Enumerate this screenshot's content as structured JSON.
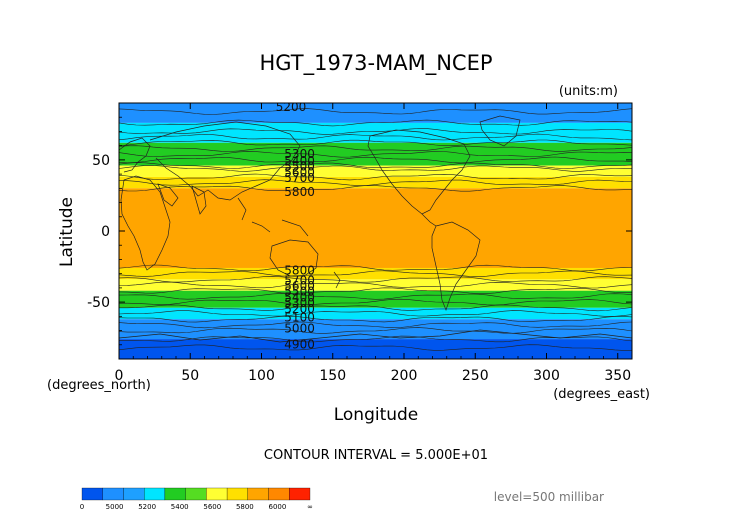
{
  "chart_data": {
    "type": "heatmap",
    "title": "HGT_1973-MAM_NCEP",
    "units_label": "(units:m)",
    "xlabel": "Longitude",
    "ylabel": "Latitude",
    "x_unit_label": "(degrees_east)",
    "y_unit_label": "(degrees_north)",
    "xlim": [
      0,
      360
    ],
    "ylim": [
      -90,
      90
    ],
    "xticks": [
      0,
      50,
      100,
      150,
      200,
      250,
      300,
      350
    ],
    "yticks": [
      50,
      0,
      -50
    ],
    "contour_interval_label": "CONTOUR INTERVAL = 5.000E+01",
    "level_label": "level=500 millibar",
    "bands": [
      {
        "lat_top": 90,
        "lat_bottom": 76,
        "color": "#1e90ff"
      },
      {
        "lat_top": 76,
        "lat_bottom": 62,
        "color": "#00e5ff"
      },
      {
        "lat_top": 62,
        "lat_bottom": 46,
        "color": "#22cc22"
      },
      {
        "lat_top": 46,
        "lat_bottom": 38,
        "color": "#ffff33"
      },
      {
        "lat_top": 38,
        "lat_bottom": 30,
        "color": "#ffe000"
      },
      {
        "lat_top": 30,
        "lat_bottom": -26,
        "color": "#ffa500"
      },
      {
        "lat_top": -26,
        "lat_bottom": -34,
        "color": "#ffe000"
      },
      {
        "lat_top": -34,
        "lat_bottom": -42,
        "color": "#ffff33"
      },
      {
        "lat_top": -42,
        "lat_bottom": -54,
        "color": "#22cc22"
      },
      {
        "lat_top": -54,
        "lat_bottom": -62,
        "color": "#00e5ff"
      },
      {
        "lat_top": -62,
        "lat_bottom": -76,
        "color": "#1e90ff"
      },
      {
        "lat_top": -76,
        "lat_bottom": -90,
        "color": "#0055ee"
      }
    ],
    "contour_labels": [
      {
        "text": "5200",
        "lon": 110,
        "lat": 88
      },
      {
        "text": "5300",
        "lon": 116,
        "lat": 55
      },
      {
        "text": "5400",
        "lon": 116,
        "lat": 50
      },
      {
        "text": "5500",
        "lon": 116,
        "lat": 46
      },
      {
        "text": "5600",
        "lon": 116,
        "lat": 42
      },
      {
        "text": "5700",
        "lon": 116,
        "lat": 38
      },
      {
        "text": "5800",
        "lon": 116,
        "lat": 28
      },
      {
        "text": "5800",
        "lon": 116,
        "lat": -27
      },
      {
        "text": "5700",
        "lon": 116,
        "lat": -34
      },
      {
        "text": "5600",
        "lon": 116,
        "lat": -38
      },
      {
        "text": "5500",
        "lon": 116,
        "lat": -42
      },
      {
        "text": "5400",
        "lon": 116,
        "lat": -46
      },
      {
        "text": "5300",
        "lon": 116,
        "lat": -50
      },
      {
        "text": "5200",
        "lon": 116,
        "lat": -54
      },
      {
        "text": "5100",
        "lon": 116,
        "lat": -60
      },
      {
        "text": "5000",
        "lon": 116,
        "lat": -68
      },
      {
        "text": "4900",
        "lon": 116,
        "lat": -79
      }
    ],
    "colorbar": {
      "colors": [
        "#0055ee",
        "#1e90ff",
        "#1ea0ff",
        "#00e5ff",
        "#22cc22",
        "#55dd22",
        "#ffff33",
        "#ffe000",
        "#ffa500",
        "#ff8800",
        "#ff2200"
      ],
      "tick_labels": [
        "0",
        "5000",
        "5200",
        "5400",
        "5600",
        "5800",
        "6000",
        "∞"
      ]
    }
  }
}
